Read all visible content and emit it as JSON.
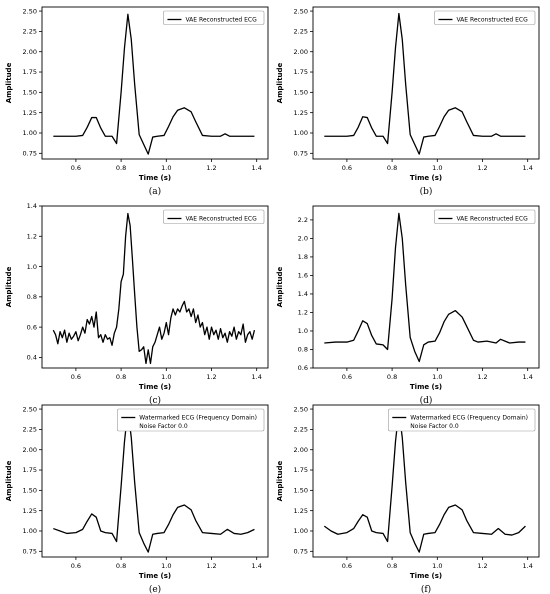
{
  "chart_data": [
    {
      "type": "line",
      "panel_label": "(a)",
      "xlabel": "Time (s)",
      "ylabel": "Amplitude",
      "xlim": [
        0.45,
        1.45
      ],
      "ylim": [
        0.68,
        2.55
      ],
      "xticks": [
        0.6,
        0.8,
        1.0,
        1.2,
        1.4
      ],
      "xtick_labels": [
        "0.6",
        "0.8",
        "1.0",
        "1.2",
        "1.4"
      ],
      "yticks": [
        0.75,
        1.0,
        1.25,
        1.5,
        1.75,
        2.0,
        2.25,
        2.5
      ],
      "ytick_labels": [
        "0.75",
        "1.00",
        "1.25",
        "1.50",
        "1.75",
        "2.00",
        "2.25",
        "2.50"
      ],
      "legend": [
        "VAE Reconstructed ECG"
      ],
      "legend_position": "top-right",
      "series": [
        {
          "name": "VAE Reconstructed ECG",
          "x": [
            0.5,
            0.6,
            0.63,
            0.65,
            0.67,
            0.69,
            0.71,
            0.73,
            0.76,
            0.78,
            0.8,
            0.815,
            0.83,
            0.845,
            0.86,
            0.88,
            0.9,
            0.92,
            0.94,
            0.96,
            0.99,
            1.01,
            1.03,
            1.05,
            1.08,
            1.11,
            1.13,
            1.16,
            1.2,
            1.24,
            1.26,
            1.28,
            1.32,
            1.39
          ],
          "y": [
            0.96,
            0.96,
            0.97,
            1.07,
            1.19,
            1.19,
            1.06,
            0.96,
            0.96,
            0.87,
            1.5,
            2.05,
            2.46,
            2.15,
            1.6,
            0.98,
            0.86,
            0.74,
            0.95,
            0.96,
            0.97,
            1.08,
            1.2,
            1.28,
            1.31,
            1.26,
            1.14,
            0.97,
            0.96,
            0.96,
            0.99,
            0.96,
            0.96,
            0.96
          ]
        }
      ]
    },
    {
      "type": "line",
      "panel_label": "(b)",
      "xlabel": "Time (s)",
      "ylabel": "Amplitude",
      "xlim": [
        0.45,
        1.45
      ],
      "ylim": [
        0.68,
        2.55
      ],
      "xticks": [
        0.6,
        0.8,
        1.0,
        1.2,
        1.4
      ],
      "xtick_labels": [
        "0.6",
        "0.8",
        "1.0",
        "1.2",
        "1.4"
      ],
      "yticks": [
        0.75,
        1.0,
        1.25,
        1.5,
        1.75,
        2.0,
        2.25,
        2.5
      ],
      "ytick_labels": [
        "0.75",
        "1.00",
        "1.25",
        "1.50",
        "1.75",
        "2.00",
        "2.25",
        "2.50"
      ],
      "legend": [
        "VAE Reconstructed ECG"
      ],
      "legend_position": "top-right",
      "series": [
        {
          "name": "VAE Reconstructed ECG",
          "x": [
            0.5,
            0.6,
            0.63,
            0.65,
            0.67,
            0.69,
            0.71,
            0.73,
            0.76,
            0.78,
            0.8,
            0.815,
            0.83,
            0.845,
            0.86,
            0.88,
            0.9,
            0.92,
            0.94,
            0.96,
            0.99,
            1.01,
            1.03,
            1.05,
            1.08,
            1.11,
            1.13,
            1.16,
            1.2,
            1.24,
            1.26,
            1.28,
            1.32,
            1.39
          ],
          "y": [
            0.96,
            0.96,
            0.97,
            1.07,
            1.2,
            1.19,
            1.06,
            0.96,
            0.96,
            0.87,
            1.5,
            2.05,
            2.47,
            2.15,
            1.6,
            0.98,
            0.86,
            0.74,
            0.95,
            0.96,
            0.97,
            1.08,
            1.2,
            1.28,
            1.31,
            1.26,
            1.14,
            0.97,
            0.96,
            0.96,
            0.99,
            0.96,
            0.96,
            0.96
          ]
        }
      ]
    },
    {
      "type": "line",
      "panel_label": "(c)",
      "xlabel": "Time (s)",
      "ylabel": "Amplitude",
      "xlim": [
        0.45,
        1.45
      ],
      "ylim": [
        0.33,
        1.4
      ],
      "xticks": [
        0.6,
        0.8,
        1.0,
        1.2,
        1.4
      ],
      "xtick_labels": [
        "0.6",
        "0.8",
        "1.0",
        "1.2",
        "1.4"
      ],
      "yticks": [
        0.4,
        0.6,
        0.8,
        1.0,
        1.2,
        1.4
      ],
      "ytick_labels": [
        "0.4",
        "0.6",
        "0.8",
        "1.0",
        "1.2",
        "1.4"
      ],
      "legend": [
        "VAE Reconstructed ECG"
      ],
      "legend_position": "top-right",
      "series": [
        {
          "name": "VAE Reconstructed ECG",
          "x": [
            0.5,
            0.51,
            0.52,
            0.53,
            0.54,
            0.55,
            0.56,
            0.57,
            0.58,
            0.59,
            0.6,
            0.61,
            0.62,
            0.63,
            0.64,
            0.65,
            0.66,
            0.67,
            0.68,
            0.69,
            0.7,
            0.71,
            0.72,
            0.73,
            0.74,
            0.75,
            0.76,
            0.77,
            0.78,
            0.79,
            0.8,
            0.81,
            0.82,
            0.83,
            0.84,
            0.85,
            0.86,
            0.87,
            0.88,
            0.89,
            0.9,
            0.91,
            0.92,
            0.93,
            0.94,
            0.95,
            0.96,
            0.97,
            0.98,
            0.99,
            1.0,
            1.01,
            1.02,
            1.03,
            1.04,
            1.05,
            1.06,
            1.07,
            1.08,
            1.09,
            1.1,
            1.11,
            1.12,
            1.13,
            1.14,
            1.15,
            1.16,
            1.17,
            1.18,
            1.19,
            1.2,
            1.21,
            1.22,
            1.23,
            1.24,
            1.25,
            1.26,
            1.27,
            1.28,
            1.29,
            1.3,
            1.31,
            1.32,
            1.33,
            1.34,
            1.35,
            1.36,
            1.37,
            1.38,
            1.39
          ],
          "y": [
            0.58,
            0.55,
            0.49,
            0.57,
            0.53,
            0.58,
            0.5,
            0.56,
            0.52,
            0.54,
            0.57,
            0.51,
            0.55,
            0.6,
            0.56,
            0.65,
            0.62,
            0.67,
            0.6,
            0.7,
            0.53,
            0.55,
            0.5,
            0.55,
            0.52,
            0.53,
            0.48,
            0.56,
            0.6,
            0.72,
            0.9,
            0.95,
            1.2,
            1.35,
            1.27,
            1.05,
            0.82,
            0.6,
            0.44,
            0.45,
            0.47,
            0.36,
            0.45,
            0.36,
            0.47,
            0.5,
            0.55,
            0.6,
            0.52,
            0.56,
            0.63,
            0.55,
            0.66,
            0.72,
            0.68,
            0.72,
            0.7,
            0.74,
            0.77,
            0.7,
            0.72,
            0.67,
            0.72,
            0.63,
            0.68,
            0.6,
            0.63,
            0.55,
            0.6,
            0.52,
            0.6,
            0.55,
            0.58,
            0.52,
            0.59,
            0.53,
            0.56,
            0.5,
            0.57,
            0.54,
            0.6,
            0.52,
            0.57,
            0.55,
            0.62,
            0.5,
            0.55,
            0.57,
            0.52,
            0.58
          ]
        }
      ]
    },
    {
      "type": "line",
      "panel_label": "(d)",
      "xlabel": "Time (s)",
      "ylabel": "Amplitude",
      "xlim": [
        0.45,
        1.45
      ],
      "ylim": [
        0.6,
        2.35
      ],
      "xticks": [
        0.6,
        0.8,
        1.0,
        1.2,
        1.4
      ],
      "xtick_labels": [
        "0.6",
        "0.8",
        "1.0",
        "1.2",
        "1.4"
      ],
      "yticks": [
        0.6,
        0.8,
        1.0,
        1.2,
        1.4,
        1.6,
        1.8,
        2.0,
        2.2
      ],
      "ytick_labels": [
        "0.6",
        "0.8",
        "1.0",
        "1.2",
        "1.4",
        "1.6",
        "1.8",
        "2.0",
        "2.2"
      ],
      "legend": [
        "VAE Reconstructed ECG"
      ],
      "legend_position": "top-right",
      "series": [
        {
          "name": "VAE Reconstructed ECG",
          "x": [
            0.5,
            0.55,
            0.6,
            0.63,
            0.65,
            0.67,
            0.69,
            0.71,
            0.73,
            0.76,
            0.78,
            0.8,
            0.815,
            0.83,
            0.845,
            0.86,
            0.88,
            0.9,
            0.92,
            0.94,
            0.96,
            0.99,
            1.01,
            1.03,
            1.05,
            1.08,
            1.11,
            1.13,
            1.16,
            1.18,
            1.22,
            1.26,
            1.28,
            1.32,
            1.36,
            1.39
          ],
          "y": [
            0.87,
            0.88,
            0.88,
            0.9,
            1.0,
            1.11,
            1.08,
            0.95,
            0.86,
            0.85,
            0.8,
            1.35,
            1.9,
            2.27,
            2.0,
            1.5,
            0.93,
            0.78,
            0.67,
            0.85,
            0.88,
            0.89,
            0.98,
            1.1,
            1.18,
            1.22,
            1.15,
            1.05,
            0.9,
            0.88,
            0.89,
            0.87,
            0.91,
            0.87,
            0.88,
            0.88
          ]
        }
      ]
    },
    {
      "type": "line",
      "panel_label": "(e)",
      "xlabel": "Time (s)",
      "ylabel": "Amplitude",
      "xlim": [
        0.45,
        1.45
      ],
      "ylim": [
        0.68,
        2.55
      ],
      "xticks": [
        0.6,
        0.8,
        1.0,
        1.2,
        1.4
      ],
      "xtick_labels": [
        "0.6",
        "0.8",
        "1.0",
        "1.2",
        "1.4"
      ],
      "yticks": [
        0.75,
        1.0,
        1.25,
        1.5,
        1.75,
        2.0,
        2.25,
        2.5
      ],
      "ytick_labels": [
        "0.75",
        "1.00",
        "1.25",
        "1.50",
        "1.75",
        "2.00",
        "2.25",
        "2.50"
      ],
      "legend": [
        "Watermarked ECG (Frequency Domain)",
        "Noise Factor 0.0"
      ],
      "legend_position": "top-right",
      "series": [
        {
          "name": "Watermarked ECG (Frequency Domain)",
          "x": [
            0.5,
            0.53,
            0.56,
            0.6,
            0.63,
            0.65,
            0.67,
            0.69,
            0.71,
            0.73,
            0.76,
            0.78,
            0.8,
            0.815,
            0.83,
            0.845,
            0.86,
            0.88,
            0.9,
            0.92,
            0.94,
            0.96,
            0.99,
            1.01,
            1.03,
            1.05,
            1.08,
            1.11,
            1.13,
            1.16,
            1.2,
            1.24,
            1.27,
            1.3,
            1.33,
            1.36,
            1.39
          ],
          "y": [
            1.03,
            1.0,
            0.97,
            0.98,
            1.02,
            1.12,
            1.21,
            1.17,
            1.0,
            0.98,
            0.97,
            0.87,
            1.55,
            2.1,
            2.49,
            2.15,
            1.6,
            0.98,
            0.85,
            0.74,
            0.96,
            0.97,
            0.98,
            1.08,
            1.2,
            1.29,
            1.32,
            1.26,
            1.13,
            0.98,
            0.97,
            0.96,
            1.02,
            0.97,
            0.96,
            0.98,
            1.02
          ]
        }
      ]
    },
    {
      "type": "line",
      "panel_label": "(f)",
      "xlabel": "Time (s)",
      "ylabel": "Amplitude",
      "xlim": [
        0.45,
        1.45
      ],
      "ylim": [
        0.68,
        2.55
      ],
      "xticks": [
        0.6,
        0.8,
        1.0,
        1.2,
        1.4
      ],
      "xtick_labels": [
        "0.6",
        "0.8",
        "1.0",
        "1.2",
        "1.4"
      ],
      "yticks": [
        0.75,
        1.0,
        1.25,
        1.5,
        1.75,
        2.0,
        2.25,
        2.5
      ],
      "ytick_labels": [
        "0.75",
        "1.00",
        "1.25",
        "1.50",
        "1.75",
        "2.00",
        "2.25",
        "2.50"
      ],
      "legend": [
        "Watermarked ECG (Frequency Domain)",
        "Noise Factor 0.0"
      ],
      "legend_position": "top-right",
      "series": [
        {
          "name": "Watermarked ECG (Frequency Domain)",
          "x": [
            0.5,
            0.53,
            0.56,
            0.6,
            0.63,
            0.65,
            0.67,
            0.69,
            0.71,
            0.73,
            0.76,
            0.78,
            0.8,
            0.815,
            0.83,
            0.845,
            0.86,
            0.88,
            0.9,
            0.92,
            0.94,
            0.96,
            0.99,
            1.01,
            1.03,
            1.05,
            1.08,
            1.11,
            1.13,
            1.16,
            1.2,
            1.24,
            1.27,
            1.3,
            1.33,
            1.36,
            1.39
          ],
          "y": [
            1.06,
            1.0,
            0.96,
            0.98,
            1.03,
            1.12,
            1.2,
            1.17,
            1.0,
            0.98,
            0.97,
            0.87,
            1.55,
            2.1,
            2.48,
            2.15,
            1.6,
            0.98,
            0.85,
            0.74,
            0.96,
            0.97,
            0.98,
            1.08,
            1.2,
            1.29,
            1.32,
            1.26,
            1.13,
            0.98,
            0.97,
            0.96,
            1.03,
            0.96,
            0.95,
            0.98,
            1.06
          ]
        }
      ]
    }
  ]
}
